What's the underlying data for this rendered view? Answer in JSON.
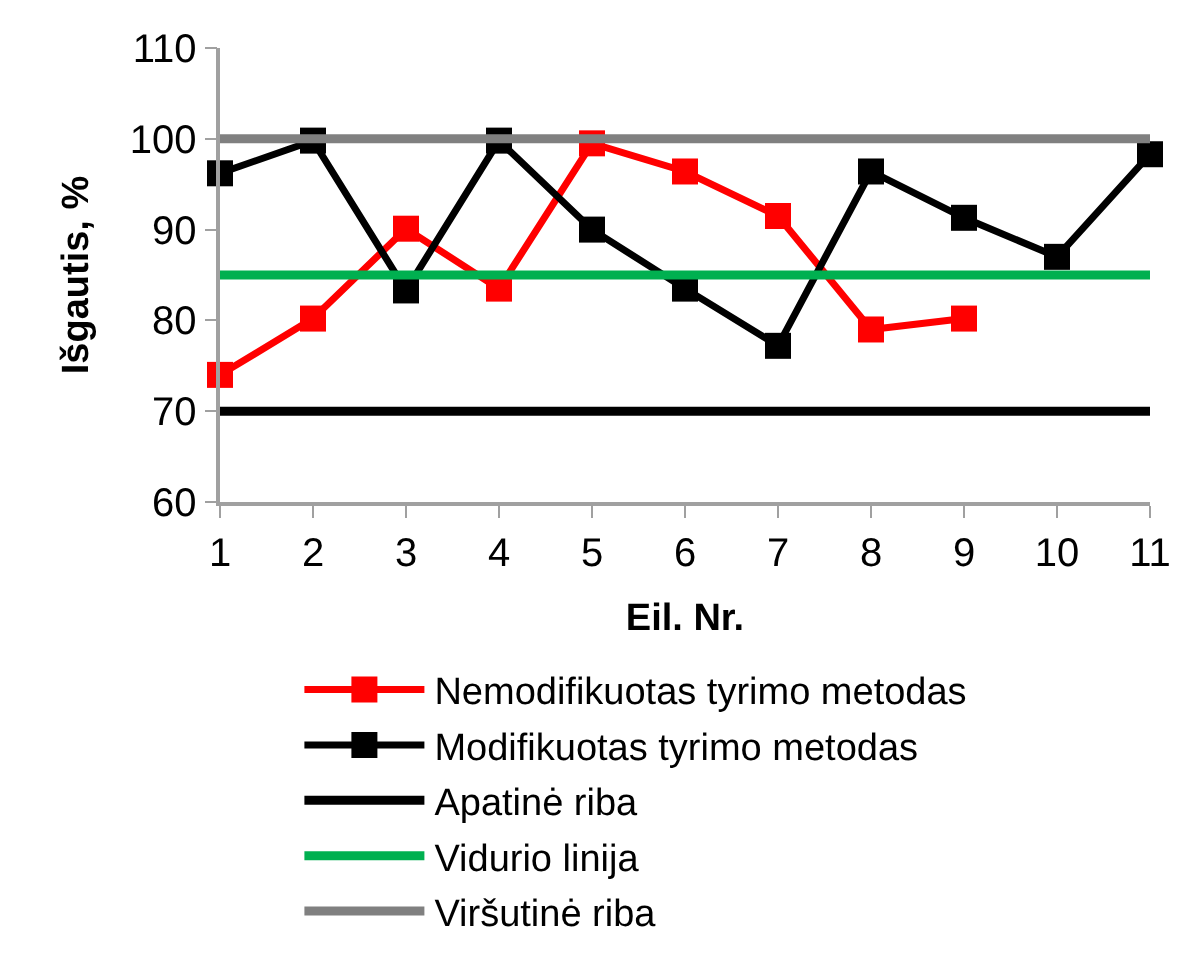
{
  "chart_data": {
    "type": "line",
    "xlabel": "Eil. Nr.",
    "ylabel": "Išgautis, %",
    "x": [
      1,
      2,
      3,
      4,
      5,
      6,
      7,
      8,
      9,
      10,
      11
    ],
    "xlim": [
      1,
      11
    ],
    "xticks": [
      1,
      2,
      3,
      4,
      5,
      6,
      7,
      8,
      9,
      10,
      11
    ],
    "ylim": [
      60,
      110
    ],
    "yticks": [
      60,
      70,
      80,
      90,
      100,
      110
    ],
    "legend": "bottom",
    "marker": "square",
    "line_style": "solid",
    "series": [
      {
        "name": "Nemodifikuotas tyrimo metodas",
        "color": "#ff0000",
        "x": [
          1,
          2,
          3,
          4,
          5,
          6,
          7,
          8,
          9
        ],
        "values": [
          74,
          80.2,
          90.1,
          83.5,
          99.5,
          96.4,
          91.5,
          79,
          80.2
        ]
      },
      {
        "name": "Modifikuotas tyrimo metodas",
        "color": "#000000",
        "values": [
          96.2,
          99.8,
          83.3,
          99.8,
          90,
          83.5,
          77.2,
          96.4,
          91.3,
          87,
          98.3
        ]
      },
      {
        "name": "Apatinė riba",
        "color": "#000000",
        "marker": "none",
        "x": [
          1,
          11
        ],
        "values": [
          70,
          70
        ]
      },
      {
        "name": "Vidurio linija",
        "color": "#00b050",
        "marker": "none",
        "x": [
          1,
          11
        ],
        "values": [
          85,
          85
        ]
      },
      {
        "name": "Viršutinė riba",
        "color": "#808080",
        "marker": "none",
        "x": [
          1,
          11
        ],
        "values": [
          100,
          100
        ]
      }
    ]
  }
}
